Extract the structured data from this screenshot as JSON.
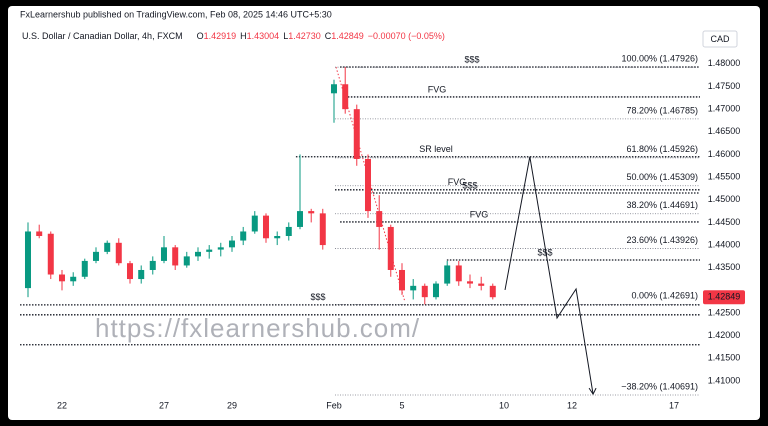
{
  "chart_data": {
    "type": "candlestick",
    "publisher": "FxLearnershub published on TradingView.com, Feb 08, 2025 14:46 UTC+5:30",
    "title": "U.S. Dollar / Canadian Dollar, 4h, FXCM",
    "ohlc_legend": [
      {
        "key": "O",
        "value": "1.42919"
      },
      {
        "key": "H",
        "value": "1.43004"
      },
      {
        "key": "L",
        "value": "1.42730"
      },
      {
        "key": "C",
        "value": "1.42849"
      }
    ],
    "change": "−0.00070 (−0.05%)",
    "currency": "CAD",
    "watermark": "https://fxlearnershub.com/",
    "up_color": "#089981",
    "down_color": "#f23645",
    "x": [
      -1,
      -0.67,
      -0.33,
      0,
      0.33,
      0.67,
      1,
      1.33,
      1.67,
      2,
      2.33,
      2.67,
      3,
      3.33,
      3.67,
      4,
      4.33,
      4.67,
      5,
      5.33,
      5.67,
      6,
      6.33,
      6.67,
      7,
      7.33,
      7.67,
      8,
      8.33,
      8.67,
      9,
      9.33,
      9.67,
      10,
      10.33,
      10.67,
      11,
      11.33,
      11.67,
      12,
      12.33,
      12.67
    ],
    "open": [
      1.4305,
      1.443,
      1.4425,
      1.4335,
      1.432,
      1.433,
      1.4365,
      1.4385,
      1.4405,
      1.436,
      1.4325,
      1.4345,
      1.4365,
      1.4395,
      1.4355,
      1.4375,
      1.4385,
      1.439,
      1.4395,
      1.441,
      1.443,
      1.4465,
      1.4415,
      1.442,
      1.444,
      1.4475,
      1.447,
      1.4735,
      1.4755,
      1.47,
      1.459,
      1.4475,
      1.444,
      1.4345,
      1.43,
      1.431,
      1.4285,
      1.4315,
      1.4355,
      1.432,
      1.4315,
      1.431
    ],
    "high": [
      1.445,
      1.4445,
      1.443,
      1.4345,
      1.434,
      1.437,
      1.4395,
      1.441,
      1.4415,
      1.4365,
      1.4355,
      1.4375,
      1.442,
      1.44,
      1.4385,
      1.4395,
      1.44,
      1.4405,
      1.442,
      1.444,
      1.4475,
      1.447,
      1.443,
      1.445,
      1.46,
      1.448,
      1.448,
      1.4765,
      1.4793,
      1.471,
      1.46,
      1.451,
      1.4445,
      1.436,
      1.4325,
      1.4315,
      1.432,
      1.4365,
      1.4365,
      1.4335,
      1.433,
      1.4315
    ],
    "low": [
      1.4285,
      1.4415,
      1.4325,
      1.43,
      1.431,
      1.4325,
      1.436,
      1.438,
      1.4355,
      1.4315,
      1.4315,
      1.4335,
      1.436,
      1.4345,
      1.435,
      1.4365,
      1.437,
      1.4375,
      1.4385,
      1.44,
      1.4425,
      1.4405,
      1.44,
      1.441,
      1.4435,
      1.445,
      1.439,
      1.467,
      1.469,
      1.4575,
      1.446,
      1.439,
      1.433,
      1.429,
      1.428,
      1.4269,
      1.428,
      1.431,
      1.431,
      1.4305,
      1.43,
      1.428
    ],
    "close": [
      1.443,
      1.442,
      1.4335,
      1.432,
      1.433,
      1.4365,
      1.4385,
      1.4405,
      1.436,
      1.4325,
      1.4345,
      1.4365,
      1.4395,
      1.4355,
      1.4375,
      1.4385,
      1.439,
      1.4395,
      1.441,
      1.443,
      1.4465,
      1.4415,
      1.442,
      1.444,
      1.4475,
      1.447,
      1.44,
      1.4755,
      1.47,
      1.459,
      1.4475,
      1.444,
      1.4345,
      1.43,
      1.431,
      1.4285,
      1.4315,
      1.4355,
      1.432,
      1.4315,
      1.431,
      1.42849
    ],
    "xlim": [
      -1.235,
      18.765
    ],
    "xticks": [
      {
        "value": 0,
        "label": "22"
      },
      {
        "value": 3,
        "label": "27"
      },
      {
        "value": 5,
        "label": "29"
      },
      {
        "value": 8,
        "label": "Feb"
      },
      {
        "value": 10,
        "label": "5"
      },
      {
        "value": 13,
        "label": "10"
      },
      {
        "value": 15,
        "label": "12"
      },
      {
        "value": 18,
        "label": "17"
      }
    ],
    "ylim": [
      1.4058,
      1.4835
    ],
    "yticks": [
      {
        "value": 1.48,
        "label": "1.48000"
      },
      {
        "value": 1.475,
        "label": "1.47500"
      },
      {
        "value": 1.47,
        "label": "1.47000"
      },
      {
        "value": 1.465,
        "label": "1.46500"
      },
      {
        "value": 1.46,
        "label": "1.46000"
      },
      {
        "value": 1.455,
        "label": "1.45500"
      },
      {
        "value": 1.45,
        "label": "1.45000"
      },
      {
        "value": 1.445,
        "label": "1.44500"
      },
      {
        "value": 1.44,
        "label": "1.44000"
      },
      {
        "value": 1.435,
        "label": "1.43500"
      },
      {
        "value": 1.425,
        "label": "1.42500"
      },
      {
        "value": 1.42,
        "label": "1.42000"
      },
      {
        "value": 1.415,
        "label": "1.41500"
      },
      {
        "value": 1.41,
        "label": "1.41000"
      }
    ],
    "grid": false,
    "last_price": {
      "value": 1.42849,
      "label": "1.42849"
    },
    "fib_levels": [
      {
        "value": 1.47926,
        "label": "100.00% (1.47926)"
      },
      {
        "value": 1.46785,
        "label": "78.20% (1.46785)"
      },
      {
        "value": 1.45926,
        "label": "61.80% (1.45926)"
      },
      {
        "value": 1.45309,
        "label": "50.00% (1.45309)"
      },
      {
        "value": 1.44691,
        "label": "38.20% (1.44691)"
      },
      {
        "value": 1.43926,
        "label": "23.60% (1.43926)"
      },
      {
        "value": 1.42691,
        "label": "0.00% (1.42691)"
      },
      {
        "value": 1.40691,
        "label": "−38.20% (1.40691)"
      }
    ],
    "fib_start": 8.03,
    "levels": [
      {
        "label": "$$$",
        "value": 1.4793,
        "x": 8.18
      },
      {
        "label": "FVG",
        "value": 1.4727,
        "x": 8.32
      },
      {
        "label": "SR level",
        "value": 1.4595,
        "x": 6.88
      },
      {
        "label": "FVG",
        "value": 1.4522,
        "x": 8.03
      },
      {
        "label": "$$$",
        "value": 1.4515,
        "x": 9.06
      },
      {
        "label": "FVG",
        "value": 1.4451,
        "x": 8.18
      },
      {
        "label": "$$$",
        "value": 1.4367,
        "x": 11.32
      },
      {
        "label": "$$$",
        "value": 1.4268,
        "x": -1.235
      },
      {
        "value": 1.4246,
        "x": -1.235
      },
      {
        "value": 1.418,
        "x": -1.235
      }
    ],
    "projection": {
      "x": [
        13.03,
        13.76,
        14.56,
        15.12,
        15.62
      ],
      "y": [
        1.4301,
        1.4595,
        1.4239,
        1.4303,
        1.4071
      ]
    }
  }
}
